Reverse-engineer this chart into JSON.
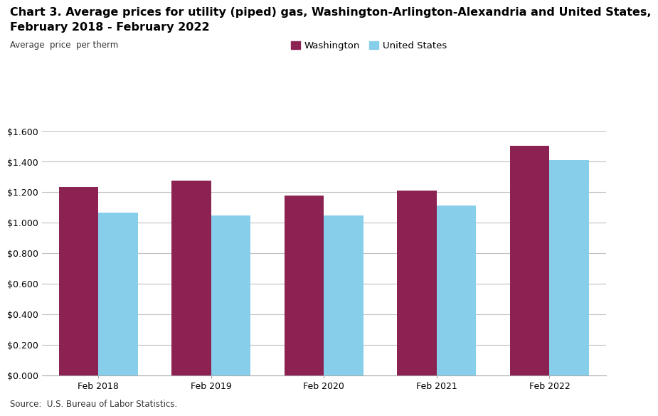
{
  "title_line1": "Chart 3. Average prices for utility (piped) gas, Washington-Arlington-Alexandria and United States,",
  "title_line2": "February 2018 - February 2022",
  "ylabel": "Average  price  per therm",
  "categories": [
    "Feb 2018",
    "Feb 2019",
    "Feb 2020",
    "Feb 2021",
    "Feb 2022"
  ],
  "washington": [
    1.235,
    1.275,
    1.178,
    1.21,
    1.505
  ],
  "us": [
    1.067,
    1.046,
    1.046,
    1.113,
    1.408
  ],
  "washington_color": "#8B2252",
  "us_color": "#87CEEB",
  "washington_label": "Washington",
  "us_label": "United States",
  "ylim": [
    0,
    1.6
  ],
  "yticks": [
    0.0,
    0.2,
    0.4,
    0.6,
    0.8,
    1.0,
    1.2,
    1.4,
    1.6
  ],
  "source": "Source:  U.S. Bureau of Labor Statistics.",
  "bar_width": 0.35,
  "background_color": "#ffffff",
  "grid_color": "#c0c0c0",
  "title_fontsize": 11.5,
  "axis_label_fontsize": 8.5,
  "tick_fontsize": 9,
  "legend_fontsize": 9.5
}
